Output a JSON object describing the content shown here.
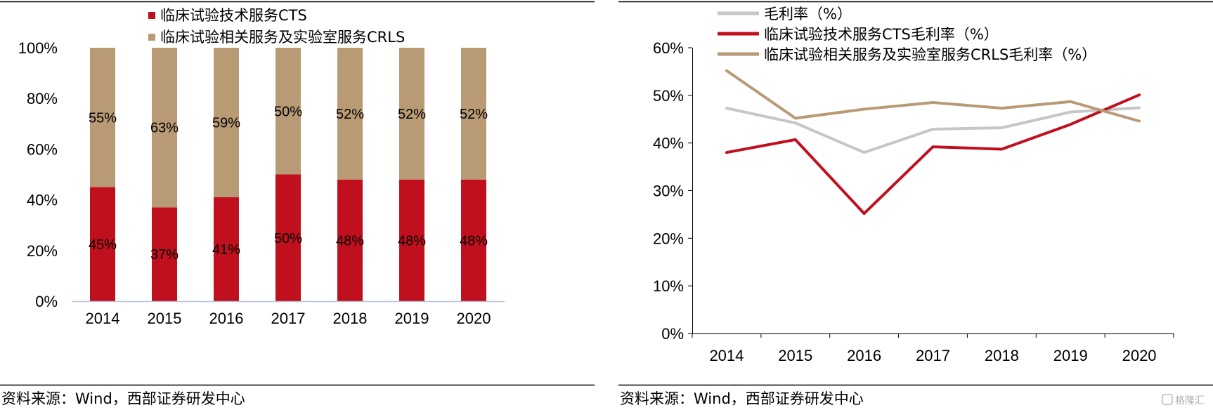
{
  "charts": {
    "left": {
      "source": "资料来源：Wind，西部证券研发中心",
      "chart_data": {
        "type": "bar",
        "stacked": true,
        "categories": [
          "2014",
          "2015",
          "2016",
          "2017",
          "2018",
          "2019",
          "2020"
        ],
        "series": [
          {
            "name": "临床试验技术服务CTS",
            "color": "#c0101e",
            "values": [
              45,
              37,
              41,
              50,
              48,
              48,
              48
            ],
            "labels": [
              "45%",
              "37%",
              "41%",
              "50%",
              "48%",
              "48%",
              "48%"
            ]
          },
          {
            "name": "临床试验相关服务及实验室服务CRLS",
            "color": "#b89a74",
            "values": [
              55,
              63,
              59,
              50,
              52,
              52,
              52
            ],
            "labels": [
              "55%",
              "63%",
              "59%",
              "50%",
              "52%",
              "52%",
              "52%"
            ]
          }
        ],
        "ylim": [
          0,
          100
        ],
        "yticks": [
          "0%",
          "20%",
          "40%",
          "60%",
          "80%",
          "100%"
        ],
        "grid": false,
        "legend": "top"
      }
    },
    "right": {
      "source": "资料来源：Wind，西部证券研发中心",
      "watermark": "格隆汇",
      "chart_data": {
        "type": "line",
        "categories": [
          "2014",
          "2015",
          "2016",
          "2017",
          "2018",
          "2019",
          "2020"
        ],
        "series": [
          {
            "name": "毛利率（%）",
            "color": "#c6c6c6",
            "values": [
              47.3,
              44.2,
              38.0,
              42.9,
              43.2,
              46.5,
              47.4
            ]
          },
          {
            "name": "临床试验技术服务CTS毛利率（%）",
            "color": "#c0101e",
            "values": [
              38.0,
              40.7,
              25.2,
              39.2,
              38.7,
              43.9,
              50.1
            ]
          },
          {
            "name": "临床试验相关服务及实验室服务CRLS毛利率（%）",
            "color": "#b89a74",
            "values": [
              55.2,
              45.2,
              47.1,
              48.5,
              47.3,
              48.7,
              44.6
            ]
          }
        ],
        "ylim": [
          0,
          60
        ],
        "yticks": [
          "0%",
          "10%",
          "20%",
          "30%",
          "40%",
          "50%",
          "60%"
        ],
        "grid": false,
        "legend": "top-left"
      }
    }
  }
}
